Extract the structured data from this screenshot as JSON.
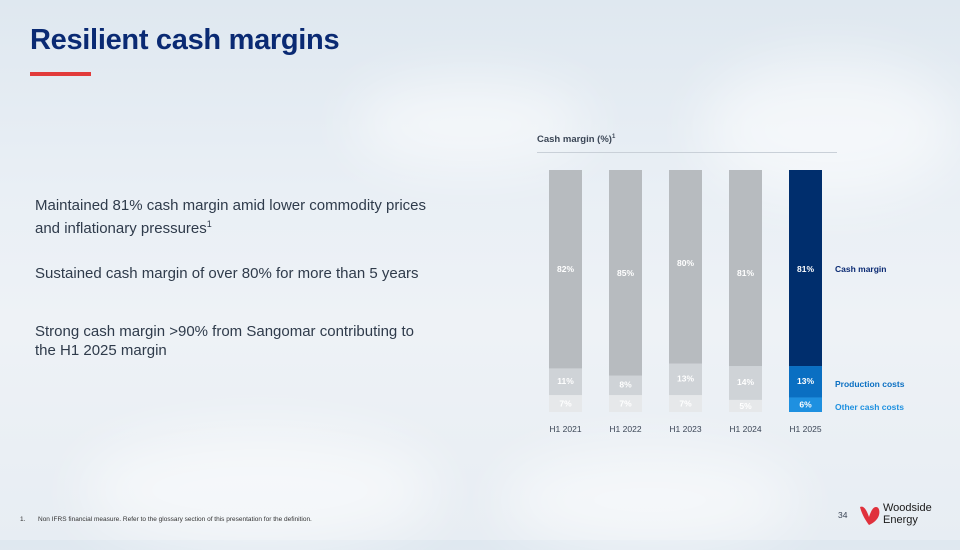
{
  "header": {
    "title": "Resilient cash margins"
  },
  "bullets": [
    {
      "text": "Maintained 81% cash margin amid lower commodity prices and inflationary pressures",
      "sup": "1"
    },
    {
      "text": "Sustained cash margin of over 80% for more than 5 years"
    },
    {
      "text": "Strong cash margin >90% from Sangomar contributing to the H1 2025 margin"
    }
  ],
  "chart_data": {
    "type": "bar",
    "stacked": true,
    "title": "Cash margin (%)",
    "title_sup": "1",
    "categories": [
      "H1 2021",
      "H1 2022",
      "H1 2023",
      "H1 2024",
      "H1 2025"
    ],
    "series": [
      {
        "name": "Other cash costs",
        "values": [
          7,
          7,
          7,
          5,
          6
        ],
        "labels": [
          "7%",
          "7%",
          "7%",
          "5%",
          "6%"
        ]
      },
      {
        "name": "Production costs",
        "values": [
          11,
          8,
          13,
          14,
          13
        ],
        "labels": [
          "11%",
          "8%",
          "13%",
          "14%",
          "13%"
        ]
      },
      {
        "name": "Cash margin",
        "values": [
          82,
          85,
          80,
          81,
          81
        ],
        "labels": [
          "82%",
          "85%",
          "80%",
          "81%",
          "81%"
        ]
      }
    ],
    "legend": [
      "Cash margin",
      "Production costs",
      "Other cash costs"
    ],
    "legend_position": "right",
    "highlight_category": "H1 2025",
    "colors": {
      "grey_main": "#b7bbbf",
      "grey_mid": "#cfd3d7",
      "grey_light": "#e6e8ea",
      "highlight_main": "#002e6d",
      "highlight_mid": "#0a6fc2",
      "highlight_light": "#1e90e0",
      "legend_main": "#0a2a73",
      "legend_light": "#1e90e0"
    }
  },
  "footer": {
    "footnote_num": "1.",
    "footnote": "Non IFRS financial measure. Refer to the glossary section of this presentation for the definition.",
    "page_number": "34",
    "logo_line1": "Woodside",
    "logo_line2": "Energy",
    "logo_color": "#e0313c"
  }
}
